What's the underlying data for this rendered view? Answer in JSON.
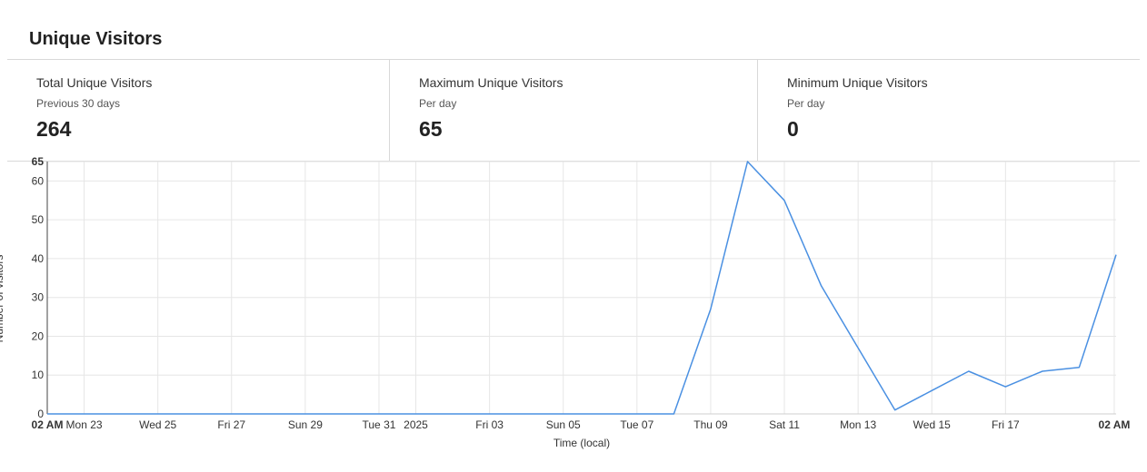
{
  "page": {
    "title": "Unique Visitors"
  },
  "stats": [
    {
      "title": "Total Unique Visitors",
      "subtitle": "Previous 30 days",
      "value": "264"
    },
    {
      "title": "Maximum Unique Visitors",
      "subtitle": "Per day",
      "value": "65"
    },
    {
      "title": "Minimum Unique Visitors",
      "subtitle": "Per day",
      "value": "0"
    }
  ],
  "chart_data": {
    "type": "line",
    "title": "",
    "xlabel": "Time (local)",
    "ylabel": "Number of visitors",
    "ylim": [
      0,
      65
    ],
    "yticks": [
      0,
      10,
      20,
      30,
      40,
      50,
      60,
      65
    ],
    "grid": true,
    "line_color": "#4a90e2",
    "x_ticks": [
      {
        "label": "02 AM",
        "day": 0,
        "bold": true
      },
      {
        "label": "Mon 23",
        "day": 1
      },
      {
        "label": "Wed 25",
        "day": 3
      },
      {
        "label": "Fri 27",
        "day": 5
      },
      {
        "label": "Sun 29",
        "day": 7
      },
      {
        "label": "Tue 31",
        "day": 9
      },
      {
        "label": "2025",
        "day": 10
      },
      {
        "label": "Fri 03",
        "day": 12
      },
      {
        "label": "Sun 05",
        "day": 14
      },
      {
        "label": "Tue 07",
        "day": 16
      },
      {
        "label": "Thu 09",
        "day": 18
      },
      {
        "label": "Sat 11",
        "day": 20
      },
      {
        "label": "Mon 13",
        "day": 22
      },
      {
        "label": "Wed 15",
        "day": 24
      },
      {
        "label": "Fri 17",
        "day": 26
      },
      {
        "label": "02 AM",
        "day": 28.95,
        "bold": true
      }
    ],
    "series": [
      {
        "name": "Unique Visitors",
        "x": [
          0,
          17,
          18,
          19,
          20,
          21,
          22,
          23,
          24,
          25,
          26,
          27,
          28,
          29
        ],
        "values": [
          0,
          0,
          27,
          65,
          55,
          33,
          17,
          1,
          6,
          11,
          7,
          11,
          12,
          41
        ]
      }
    ]
  }
}
